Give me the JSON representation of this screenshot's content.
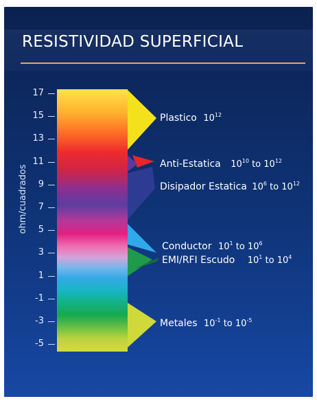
{
  "title": "RESISTIVIDAD SUPERFICIAL",
  "y_axis_label": "ohm/cuadrados",
  "ticks": [
    "17",
    "15",
    "13",
    "11",
    "9",
    "7",
    "5",
    "3",
    "1",
    "-1",
    "-3",
    "-5"
  ],
  "colors": {
    "background_top": "#0b2150",
    "background_bottom": "#1748a4",
    "rule": "#f2a15d",
    "plastico": "#f5e21f",
    "anti_estatica": "#e8242c",
    "disipador": "#2d3c92",
    "conductor": "#2fa8e8",
    "emi_rfi": "#1f9a4a",
    "metales": "#cfd93a"
  },
  "labels": {
    "plastico": {
      "name": "Plastico",
      "value": "10",
      "exp": "12"
    },
    "anti_estatica": {
      "name": "Anti-Estatica",
      "from": "10",
      "from_exp": "10",
      "to_word": "to",
      "to": "10",
      "to_exp": "12"
    },
    "disipador": {
      "name": "Disipador Estatica",
      "from": "10",
      "from_exp": "6",
      "to_word": "to",
      "to": "10",
      "to_exp": "12"
    },
    "conductor": {
      "name": "Conductor",
      "from": "10",
      "from_exp": "1",
      "to_word": "to",
      "to": "10",
      "to_exp": "6"
    },
    "emi_rfi": {
      "name": "EMI/RFI Escudo",
      "from": "10",
      "from_exp": "1",
      "to_word": "to",
      "to": "10",
      "to_exp": "4"
    },
    "metales": {
      "name": "Metales",
      "from": "10",
      "from_exp": "-1",
      "to_word": "to",
      "to": "10",
      "to_exp": "-5"
    }
  }
}
